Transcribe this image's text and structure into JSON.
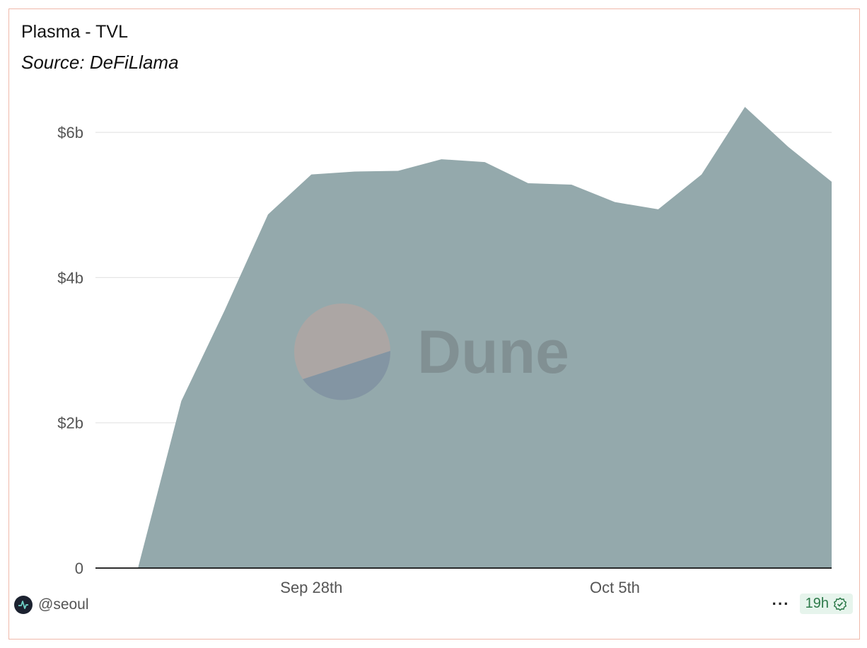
{
  "header": {
    "title": "Plasma - TVL",
    "subtitle": "Source: DeFiLlama"
  },
  "watermark": {
    "text": "Dune"
  },
  "footer": {
    "username": "@seoul",
    "more_label": "···",
    "age_badge": "19h"
  },
  "colors": {
    "area_fill": "#94a9ac",
    "card_border": "#f0b9aa",
    "badge_bg": "#e6f4ec",
    "badge_text": "#2d7a4a"
  },
  "icons": {
    "avatar": "dune-logo-icon",
    "more": "more-dots-icon",
    "verified": "verified-check-icon"
  },
  "chart_data": {
    "type": "area",
    "title": "Plasma - TVL",
    "subtitle": "Source: DeFiLlama",
    "xlabel": "",
    "ylabel": "",
    "x": [
      "2025-09-24",
      "2025-09-25",
      "2025-09-26",
      "2025-09-27",
      "2025-09-28",
      "2025-09-29",
      "2025-09-30",
      "2025-10-01",
      "2025-10-02",
      "2025-10-03",
      "2025-10-04",
      "2025-10-05",
      "2025-10-06",
      "2025-10-07",
      "2025-10-08",
      "2025-10-09",
      "2025-10-10"
    ],
    "series": [
      {
        "values": [
          0,
          2.3,
          3.55,
          4.87,
          5.42,
          5.46,
          5.47,
          5.63,
          5.59,
          5.3,
          5.28,
          5.04,
          4.94,
          5.42,
          6.35,
          5.8,
          5.32
        ]
      }
    ],
    "y_unit": "billion USD",
    "ylim": [
      0,
      6.4
    ],
    "yticks": [
      0,
      2,
      4,
      6
    ],
    "ytick_labels": [
      "0",
      "$2b",
      "$4b",
      "$6b"
    ],
    "xtick_labels": [
      "Sep 28th",
      "Oct 5th"
    ],
    "xtick_positions": [
      "2025-09-28",
      "2025-10-05"
    ],
    "grid": true,
    "legend": "none"
  }
}
